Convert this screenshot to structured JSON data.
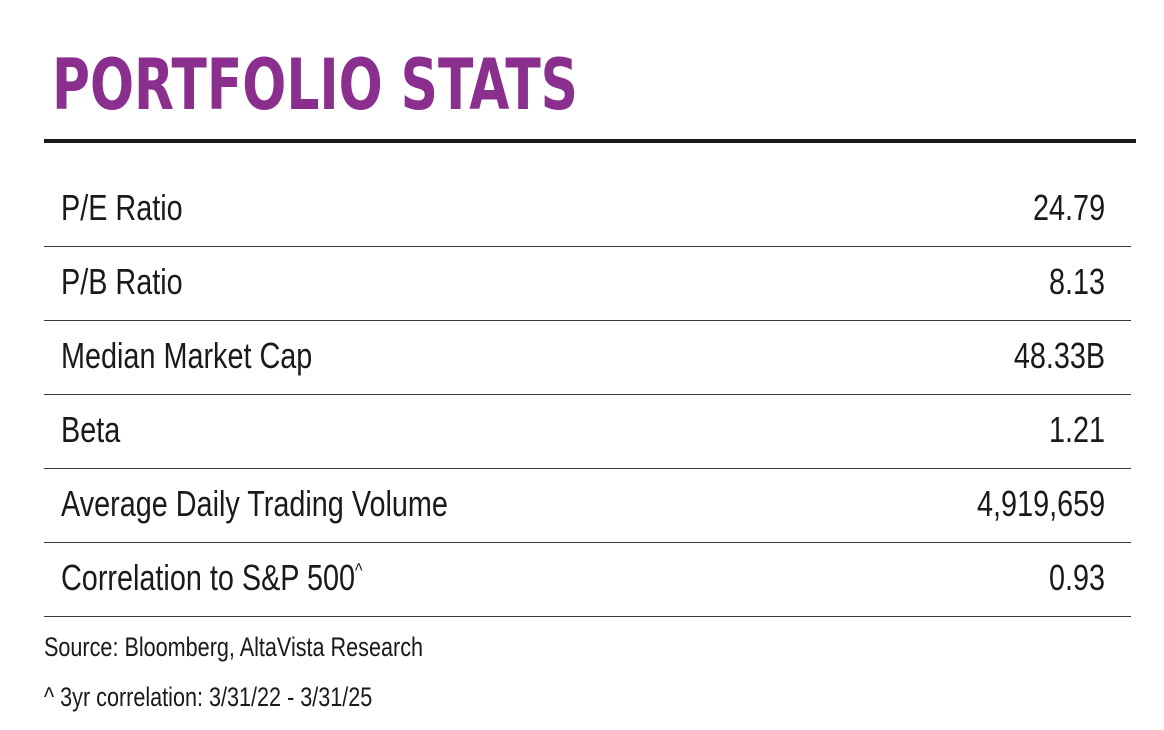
{
  "title": "PORTFOLIO STATS",
  "colors": {
    "title": "#8b2f8e",
    "rule": "#1a1a1a",
    "text": "#1a1a1a"
  },
  "stats": [
    {
      "label": "P/E Ratio",
      "value": "24.79"
    },
    {
      "label": "P/B Ratio",
      "value": "8.13"
    },
    {
      "label": "Median Market Cap",
      "value": "48.33B"
    },
    {
      "label": "Beta",
      "value": "1.21"
    },
    {
      "label": "Average Daily Trading Volume",
      "value": "4,919,659"
    },
    {
      "label": "Correlation to S&P 500",
      "label_sup": "^",
      "value": "0.93"
    }
  ],
  "footnotes": {
    "source": "Source: Bloomberg, AltaVista Research",
    "correlation": "^ 3yr correlation: 3/31/22 - 3/31/25"
  }
}
